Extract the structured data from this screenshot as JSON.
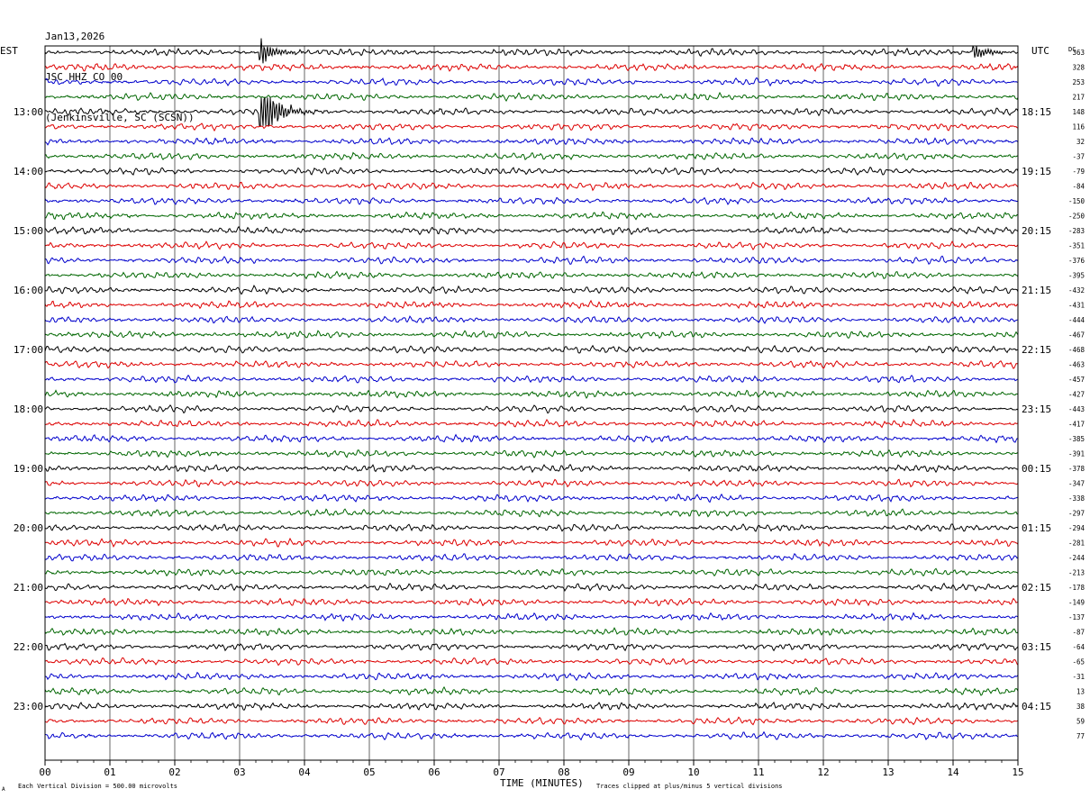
{
  "header": {
    "date": "Jan13,2026",
    "station": "JSC HHZ CO 00",
    "location": "(Jenkinsville, SC (SCSN))"
  },
  "labels": {
    "left_tz": "EST",
    "right_tz": "UTC",
    "dc": "DC",
    "footer_left": "Each Vertical Division =  500.00 microvolts",
    "footer_right": "Traces clipped at plus/minus 5 vertical divisions",
    "footer_corner": "A",
    "xlabel": "TIME (MINUTES)"
  },
  "chart_data": {
    "type": "line",
    "title": "JSC HHZ CO 00",
    "xlabel": "TIME (MINUTES)",
    "xlim": [
      0,
      15
    ],
    "x_ticks": [
      "00",
      "01",
      "02",
      "03",
      "04",
      "05",
      "06",
      "07",
      "08",
      "09",
      "10",
      "11",
      "12",
      "13",
      "14",
      "15"
    ],
    "trace_colors": [
      "#000000",
      "#dd0000",
      "#0000cc",
      "#006600"
    ],
    "left_hour_labels": [
      "13:00",
      "14:00",
      "15:00",
      "16:00",
      "17:00",
      "18:00",
      "19:00",
      "20:00",
      "21:00",
      "22:00",
      "23:00"
    ],
    "right_hour_labels": [
      "18:15",
      "19:15",
      "20:15",
      "21:15",
      "22:15",
      "23:15",
      "00:15",
      "01:15",
      "02:15",
      "03:15",
      "04:15"
    ],
    "dc_offsets": [
      363,
      328,
      253,
      217,
      148,
      116,
      32,
      -37,
      -79,
      -84,
      -150,
      -250,
      -283,
      -351,
      -376,
      -395,
      -432,
      -431,
      -444,
      -467,
      -468,
      -463,
      -457,
      -427,
      -443,
      -417,
      -385,
      -391,
      -378,
      -347,
      -338,
      -297,
      -294,
      -281,
      -244,
      -213,
      -178,
      -149,
      -137,
      -87,
      -64,
      -65,
      -31,
      13,
      38,
      59,
      77
    ],
    "events": [
      {
        "trace": 0,
        "minute": 3.3,
        "amplitude": 1.6
      },
      {
        "trace": 4,
        "minute": 3.3,
        "amplitude": 5.0
      },
      {
        "trace": 0,
        "minute": 14.3,
        "amplitude": 1.0
      }
    ]
  }
}
